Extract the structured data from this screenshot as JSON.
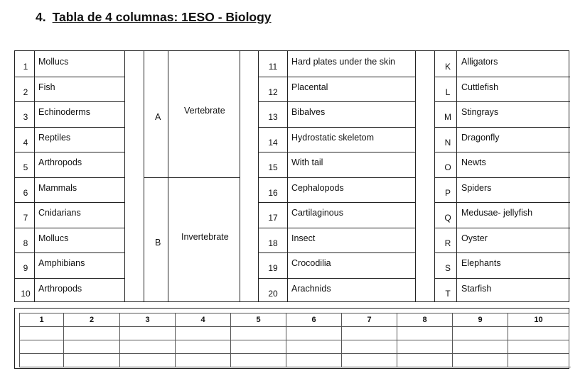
{
  "heading": {
    "number": "4.",
    "title": "Tabla de 4 columnas: 1ESO - Biology"
  },
  "column1": [
    {
      "n": "1",
      "label": "Mollucs"
    },
    {
      "n": "2",
      "label": "Fish"
    },
    {
      "n": "3",
      "label": "Echinoderms"
    },
    {
      "n": "4",
      "label": "Reptiles"
    },
    {
      "n": "5",
      "label": "Arthropods"
    },
    {
      "n": "6",
      "label": "Mammals"
    },
    {
      "n": "7",
      "label": "Cnidarians"
    },
    {
      "n": "8",
      "label": "Mollucs"
    },
    {
      "n": "9",
      "label": "Amphibians"
    },
    {
      "n": "10",
      "label": "Arthropods"
    }
  ],
  "groups": [
    {
      "letter": "A",
      "label": "Vertebrate"
    },
    {
      "letter": "B",
      "label": "Invertebrate"
    }
  ],
  "column3": [
    {
      "n": "11",
      "label": "Hard plates under the skin"
    },
    {
      "n": "12",
      "label": "Placental"
    },
    {
      "n": "13",
      "label": "Bibalves"
    },
    {
      "n": "14",
      "label": "Hydrostatic skeletom"
    },
    {
      "n": "15",
      "label": "With tail"
    },
    {
      "n": "16",
      "label": "Cephalopods"
    },
    {
      "n": "17",
      "label": "Cartilaginous"
    },
    {
      "n": "18",
      "label": "Insect"
    },
    {
      "n": "19",
      "label": "Crocodilia"
    },
    {
      "n": "20",
      "label": "Arachnids"
    }
  ],
  "column4": [
    {
      "n": "K",
      "label": "Alligators"
    },
    {
      "n": "L",
      "label": "Cuttlefish"
    },
    {
      "n": "M",
      "label": "Stingrays"
    },
    {
      "n": "N",
      "label": "Dragonfly"
    },
    {
      "n": "O",
      "label": "Newts"
    },
    {
      "n": "P",
      "label": "Spiders"
    },
    {
      "n": "Q",
      "label": "Medusae- jellyfish"
    },
    {
      "n": "R",
      "label": "Oyster"
    },
    {
      "n": "S",
      "label": "Elephants"
    },
    {
      "n": "T",
      "label": "Starfish"
    }
  ],
  "answer_grid": {
    "headers": [
      "1",
      "2",
      "3",
      "4",
      "5",
      "6",
      "7",
      "8",
      "9",
      "10"
    ],
    "blank_rows": 3
  }
}
